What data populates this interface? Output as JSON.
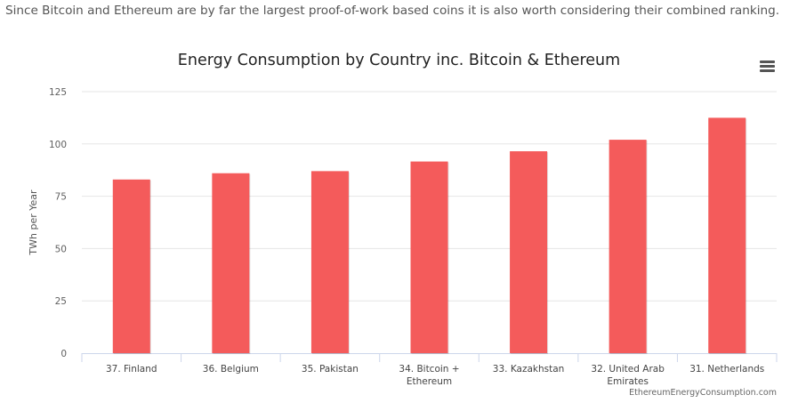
{
  "intro_text": "Since Bitcoin and Ethereum are by far the largest proof-of-work based coins it is also worth considering their combined ranking.",
  "menu_icon": "hamburger-menu-icon",
  "credit": "EthereumEnergyConsumption.com",
  "bar_color": "#f45b5b",
  "chart_data": {
    "type": "bar",
    "title": "Energy Consumption by Country inc. Bitcoin & Ethereum",
    "xlabel": "",
    "ylabel": "TWh per Year",
    "ylim": [
      0,
      125
    ],
    "yticks": [
      0,
      25,
      50,
      75,
      100,
      125
    ],
    "grid": true,
    "categories": [
      [
        "37. Finland"
      ],
      [
        "36. Belgium"
      ],
      [
        "35. Pakistan"
      ],
      [
        "34. Bitcoin +",
        "Ethereum"
      ],
      [
        "33. Kazakhstan"
      ],
      [
        "32. United Arab",
        "Emirates"
      ],
      [
        "31. Netherlands"
      ]
    ],
    "values": [
      83,
      86,
      87,
      91.6,
      96.5,
      102,
      112.5
    ]
  }
}
